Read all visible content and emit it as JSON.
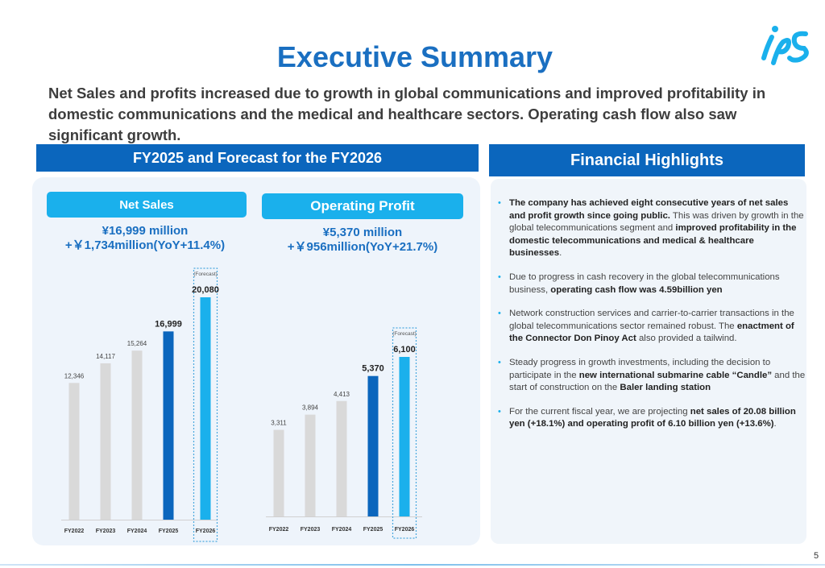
{
  "title": "Executive Summary",
  "summary": "Net Sales and profits increased due to growth in global communications and improved profitability in domestic communications and the medical and healthcare sectors.   Operating cash flow also saw significant growth.",
  "left_header": "FY2025 and Forecast for the FY2026",
  "right_header": "Financial Highlights",
  "net_sales": {
    "label": "Net Sales",
    "value": "¥16,999 million",
    "change": "+￥1,734million(YoY+11.4%)"
  },
  "operating_profit": {
    "label": "Operating Profit",
    "value": "¥5,370 million",
    "change": "+￥956million(YoY+21.7%)"
  },
  "forecast_label": "(Forecast)",
  "colors": {
    "past": "#d9d9d9",
    "current": "#0b66bd",
    "forecast": "#1ab0ec",
    "accent": "#1a6fc1"
  },
  "highlights": [
    [
      {
        "t": "The company has achieved eight consecutive years of net sales and profit growth since going public.",
        "b": true
      },
      {
        "t": " This was driven by growth in the global telecommunications segment and ",
        "b": false
      },
      {
        "t": "improved profitability in the domestic telecommunications and medical & healthcare businesses",
        "b": true
      },
      {
        "t": ".",
        "b": false
      }
    ],
    [
      {
        "t": "Due to progress in cash recovery in the global telecommunications business, ",
        "b": false
      },
      {
        "t": "operating cash flow was 4.59billion yen",
        "b": true
      }
    ],
    [
      {
        "t": "Network construction services and carrier-to-carrier transactions in the global telecommunications sector remained robust. The ",
        "b": false
      },
      {
        "t": "enactment of the Connector Don Pinoy Act",
        "b": true
      },
      {
        "t": " also provided a tailwind.",
        "b": false
      }
    ],
    [
      {
        "t": "Steady progress in growth investments, including the decision to participate in the ",
        "b": false
      },
      {
        "t": "new international submarine cable “Candle”",
        "b": true
      },
      {
        "t": " and the start of construction on the ",
        "b": false
      },
      {
        "t": "Baler landing station",
        "b": true
      }
    ],
    [
      {
        "t": "For the current fiscal year, we are projecting ",
        "b": false
      },
      {
        "t": "net sales of 20.08 billion yen (+18.1%) and operating profit of 6.10 billion yen (+13.6%)",
        "b": true
      },
      {
        "t": ".",
        "b": false
      }
    ]
  ],
  "page_number": "5",
  "chart_data": [
    {
      "type": "bar",
      "title": "Net Sales",
      "categories": [
        "FY2022",
        "FY2023",
        "FY2024",
        "FY2025",
        "FY2026"
      ],
      "values": [
        12346,
        14117,
        15264,
        16999,
        20080
      ],
      "labels": [
        "12,346",
        "14,117",
        "15,264",
        "16,999",
        "20,080"
      ],
      "forecast_index": 4,
      "highlight_index": 3,
      "ylim": [
        0,
        22000
      ]
    },
    {
      "type": "bar",
      "title": "Operating Profit",
      "categories": [
        "FY2022",
        "FY2023",
        "FY2024",
        "FY2025",
        "FY2026"
      ],
      "values": [
        3311,
        3894,
        4413,
        5370,
        6100
      ],
      "labels": [
        "3,311",
        "3,894",
        "4,413",
        "5,370",
        "6,100"
      ],
      "forecast_index": 4,
      "highlight_index": 3,
      "ylim": [
        0,
        10000
      ]
    }
  ]
}
